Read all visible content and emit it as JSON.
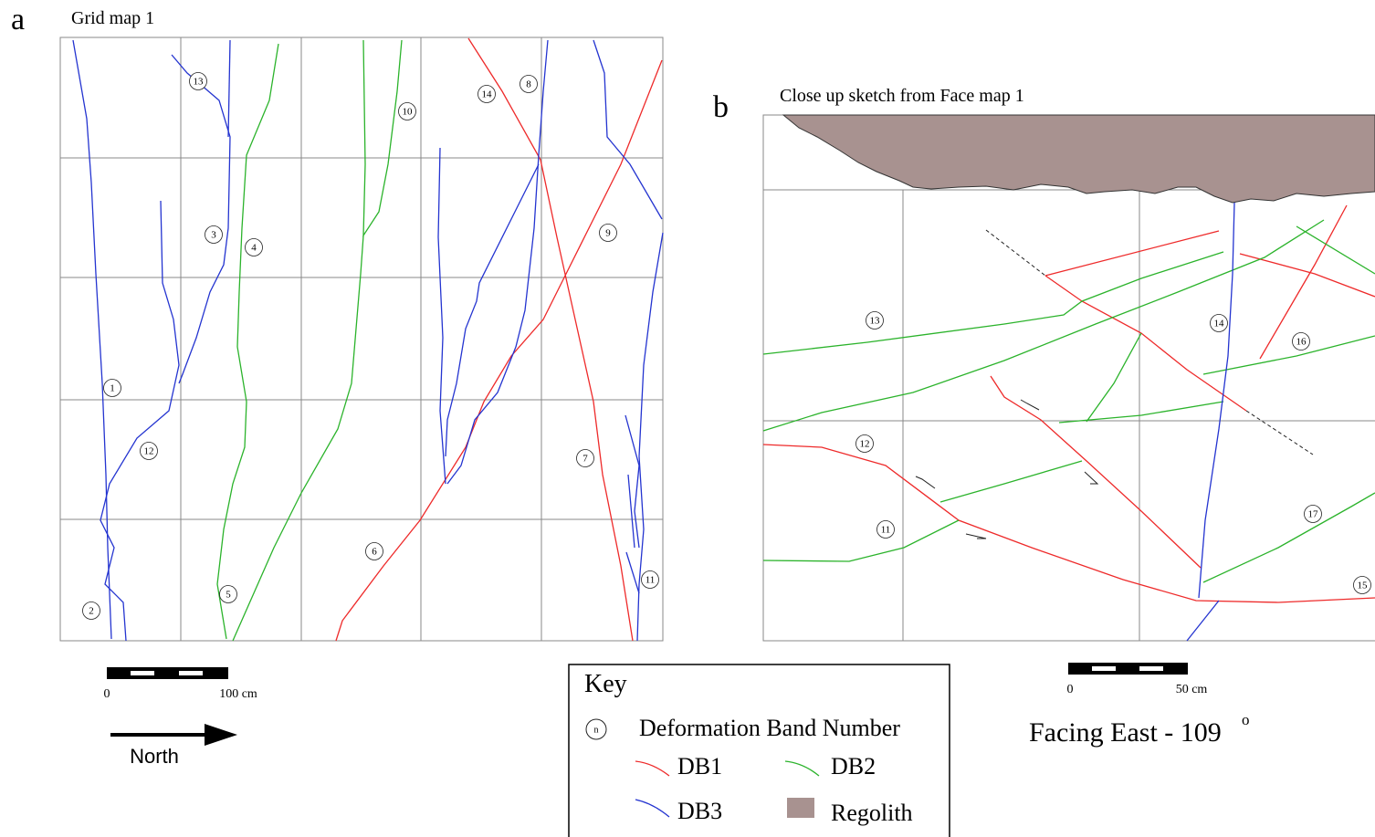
{
  "panel_a": {
    "letter": "a",
    "title": "Grid map 1",
    "band_labels": [
      "13",
      "14",
      "8",
      "10",
      "3",
      "4",
      "9",
      "1",
      "12",
      "7",
      "6",
      "11",
      "5",
      "2"
    ],
    "scale": {
      "start": "0",
      "end": "100 cm"
    },
    "arrow_label": "North"
  },
  "panel_b": {
    "letter": "b",
    "title": "Close up sketch from Face map 1",
    "band_labels": [
      "13",
      "14",
      "16",
      "12",
      "11",
      "17",
      "15"
    ],
    "scale": {
      "start": "0",
      "end": "50 cm"
    },
    "facing": "Facing East - 109",
    "facing_sup": "o"
  },
  "key": {
    "title": "Key",
    "symbol": "n",
    "items": [
      "Deformation Band Number",
      "DB1",
      "DB2",
      "DB3",
      "Regolith"
    ]
  }
}
